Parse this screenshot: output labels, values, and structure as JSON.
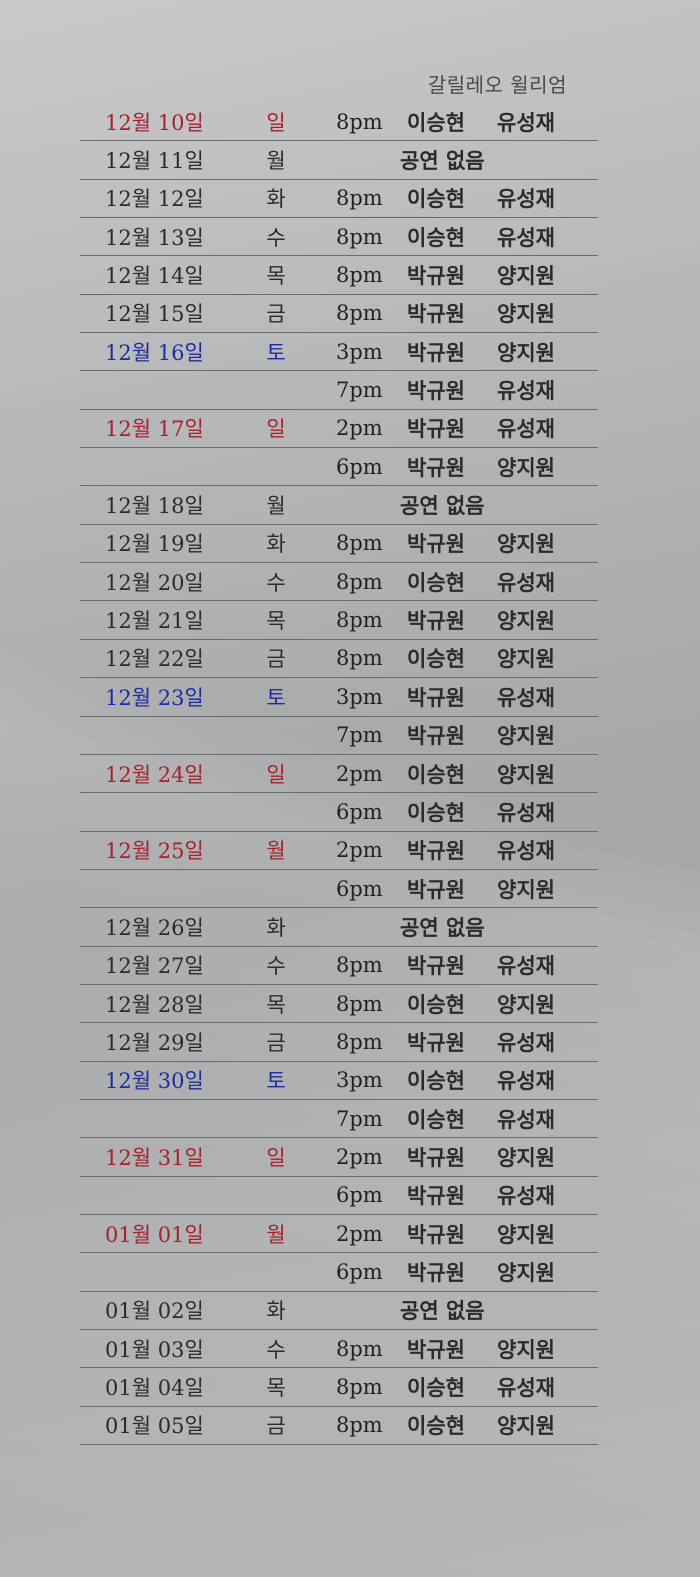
{
  "schedule": {
    "title": "갈릴레오 윌리엄",
    "rows": [
      {
        "date": "12월 10일",
        "day": "일",
        "time": "8pm",
        "cast1": "이승현",
        "cast2": "유성재",
        "note": "",
        "color": "red"
      },
      {
        "date": "12월 11일",
        "day": "월",
        "time": "",
        "cast1": "",
        "cast2": "",
        "note": "공연 없음",
        "color": "default"
      },
      {
        "date": "12월 12일",
        "day": "화",
        "time": "8pm",
        "cast1": "이승현",
        "cast2": "유성재",
        "note": "",
        "color": "default"
      },
      {
        "date": "12월 13일",
        "day": "수",
        "time": "8pm",
        "cast1": "이승현",
        "cast2": "유성재",
        "note": "",
        "color": "default"
      },
      {
        "date": "12월 14일",
        "day": "목",
        "time": "8pm",
        "cast1": "박규원",
        "cast2": "양지원",
        "note": "",
        "color": "default"
      },
      {
        "date": "12월 15일",
        "day": "금",
        "time": "8pm",
        "cast1": "박규원",
        "cast2": "양지원",
        "note": "",
        "color": "default"
      },
      {
        "date": "12월 16일",
        "day": "토",
        "time": "3pm",
        "cast1": "박규원",
        "cast2": "양지원",
        "note": "",
        "color": "blue"
      },
      {
        "date": "",
        "day": "",
        "time": "7pm",
        "cast1": "박규원",
        "cast2": "유성재",
        "note": "",
        "color": "default"
      },
      {
        "date": "12월 17일",
        "day": "일",
        "time": "2pm",
        "cast1": "박규원",
        "cast2": "유성재",
        "note": "",
        "color": "red"
      },
      {
        "date": "",
        "day": "",
        "time": "6pm",
        "cast1": "박규원",
        "cast2": "양지원",
        "note": "",
        "color": "default"
      },
      {
        "date": "12월 18일",
        "day": "월",
        "time": "",
        "cast1": "",
        "cast2": "",
        "note": "공연 없음",
        "color": "default"
      },
      {
        "date": "12월 19일",
        "day": "화",
        "time": "8pm",
        "cast1": "박규원",
        "cast2": "양지원",
        "note": "",
        "color": "default"
      },
      {
        "date": "12월 20일",
        "day": "수",
        "time": "8pm",
        "cast1": "이승현",
        "cast2": "유성재",
        "note": "",
        "color": "default"
      },
      {
        "date": "12월 21일",
        "day": "목",
        "time": "8pm",
        "cast1": "박규원",
        "cast2": "양지원",
        "note": "",
        "color": "default"
      },
      {
        "date": "12월 22일",
        "day": "금",
        "time": "8pm",
        "cast1": "이승현",
        "cast2": "양지원",
        "note": "",
        "color": "default"
      },
      {
        "date": "12월 23일",
        "day": "토",
        "time": "3pm",
        "cast1": "박규원",
        "cast2": "유성재",
        "note": "",
        "color": "blue"
      },
      {
        "date": "",
        "day": "",
        "time": "7pm",
        "cast1": "박규원",
        "cast2": "양지원",
        "note": "",
        "color": "default"
      },
      {
        "date": "12월 24일",
        "day": "일",
        "time": "2pm",
        "cast1": "이승현",
        "cast2": "양지원",
        "note": "",
        "color": "red"
      },
      {
        "date": "",
        "day": "",
        "time": "6pm",
        "cast1": "이승현",
        "cast2": "유성재",
        "note": "",
        "color": "default"
      },
      {
        "date": "12월 25일",
        "day": "월",
        "time": "2pm",
        "cast1": "박규원",
        "cast2": "유성재",
        "note": "",
        "color": "red"
      },
      {
        "date": "",
        "day": "",
        "time": "6pm",
        "cast1": "박규원",
        "cast2": "양지원",
        "note": "",
        "color": "default"
      },
      {
        "date": "12월 26일",
        "day": "화",
        "time": "",
        "cast1": "",
        "cast2": "",
        "note": "공연 없음",
        "color": "default"
      },
      {
        "date": "12월 27일",
        "day": "수",
        "time": "8pm",
        "cast1": "박규원",
        "cast2": "유성재",
        "note": "",
        "color": "default"
      },
      {
        "date": "12월 28일",
        "day": "목",
        "time": "8pm",
        "cast1": "이승현",
        "cast2": "양지원",
        "note": "",
        "color": "default"
      },
      {
        "date": "12월 29일",
        "day": "금",
        "time": "8pm",
        "cast1": "박규원",
        "cast2": "유성재",
        "note": "",
        "color": "default"
      },
      {
        "date": "12월 30일",
        "day": "토",
        "time": "3pm",
        "cast1": "이승현",
        "cast2": "유성재",
        "note": "",
        "color": "blue"
      },
      {
        "date": "",
        "day": "",
        "time": "7pm",
        "cast1": "이승현",
        "cast2": "유성재",
        "note": "",
        "color": "default"
      },
      {
        "date": "12월 31일",
        "day": "일",
        "time": "2pm",
        "cast1": "박규원",
        "cast2": "양지원",
        "note": "",
        "color": "red"
      },
      {
        "date": "",
        "day": "",
        "time": "6pm",
        "cast1": "박규원",
        "cast2": "유성재",
        "note": "",
        "color": "default"
      },
      {
        "date": "01월 01일",
        "day": "월",
        "time": "2pm",
        "cast1": "박규원",
        "cast2": "양지원",
        "note": "",
        "color": "red"
      },
      {
        "date": "",
        "day": "",
        "time": "6pm",
        "cast1": "박규원",
        "cast2": "양지원",
        "note": "",
        "color": "default"
      },
      {
        "date": "01월 02일",
        "day": "화",
        "time": "",
        "cast1": "",
        "cast2": "",
        "note": "공연 없음",
        "color": "default"
      },
      {
        "date": "01월 03일",
        "day": "수",
        "time": "8pm",
        "cast1": "박규원",
        "cast2": "양지원",
        "note": "",
        "color": "default"
      },
      {
        "date": "01월 04일",
        "day": "목",
        "time": "8pm",
        "cast1": "이승현",
        "cast2": "유성재",
        "note": "",
        "color": "default"
      },
      {
        "date": "01월 05일",
        "day": "금",
        "time": "8pm",
        "cast1": "이승현",
        "cast2": "양지원",
        "note": "",
        "color": "default"
      }
    ]
  }
}
